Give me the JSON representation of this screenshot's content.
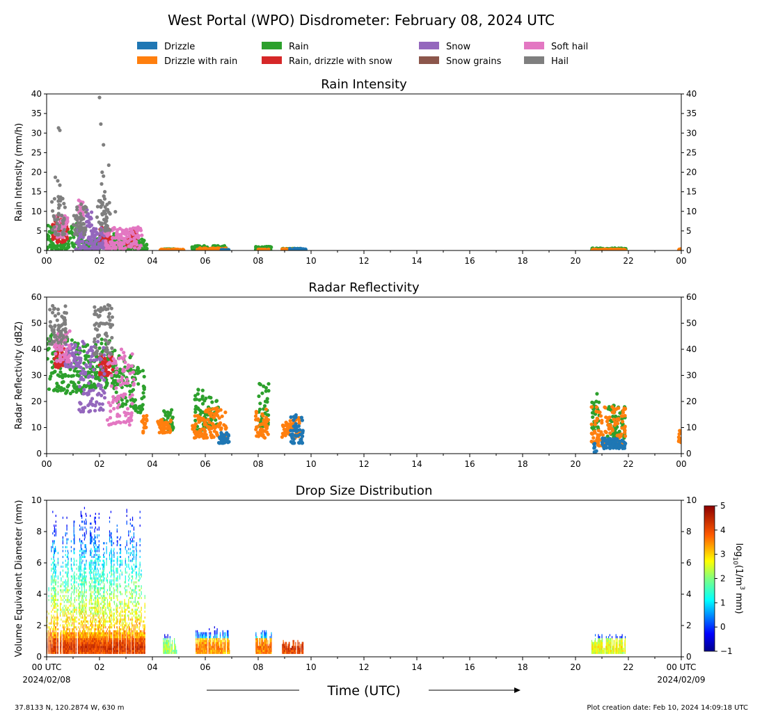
{
  "title": "West Portal (WPO) Disdrometer: February 08, 2024 UTC",
  "legend": [
    {
      "label": "Drizzle",
      "color": "#1f77b4"
    },
    {
      "label": "Drizzle with rain",
      "color": "#ff7f0e"
    },
    {
      "label": "Rain",
      "color": "#2ca02c"
    },
    {
      "label": "Rain, drizzle with snow",
      "color": "#d62728"
    },
    {
      "label": "Snow",
      "color": "#9467bd"
    },
    {
      "label": "Snow grains",
      "color": "#8c564b"
    },
    {
      "label": "Soft hail",
      "color": "#e377c2"
    },
    {
      "label": "Hail",
      "color": "#7f7f7f"
    }
  ],
  "footer": {
    "location": "37.8133 N, 120.2874 W, 630 m",
    "creation": "Plot creation date: Feb 10, 2024 14:09:18 UTC"
  },
  "chart_data": [
    {
      "type": "scatter",
      "title": "Rain Intensity",
      "ylabel": "Rain Intensity (mm/h)",
      "ylim": [
        0,
        40
      ],
      "yticks": [
        "0",
        "5",
        "10",
        "15",
        "20",
        "25",
        "30",
        "35",
        "40"
      ],
      "xlim": [
        0,
        24
      ],
      "xticks": [
        "00",
        "02",
        "04",
        "06",
        "08",
        "10",
        "12",
        "14",
        "16",
        "18",
        "20",
        "22",
        "00"
      ],
      "series": [
        {
          "name": "Rain",
          "color": "#2ca02c",
          "clusters": [
            [
              0.0,
              0.6,
              0.2,
              8.0
            ],
            [
              0.6,
              1.3,
              0.3,
              7.0
            ],
            [
              1.3,
              2.0,
              0.3,
              3.0
            ],
            [
              2.0,
              2.6,
              0.3,
              5.0
            ],
            [
              2.6,
              3.4,
              0.2,
              3.0
            ],
            [
              3.3,
              3.8,
              0.1,
              3.0
            ],
            [
              4.4,
              4.9,
              0.0,
              0.4
            ],
            [
              5.5,
              6.8,
              0.0,
              1.2
            ],
            [
              7.9,
              8.5,
              0.0,
              1.0
            ],
            [
              8.9,
              9.6,
              0.0,
              0.5
            ],
            [
              20.6,
              21.9,
              0.0,
              0.6
            ]
          ]
        },
        {
          "name": "Drizzle with rain",
          "color": "#ff7f0e",
          "clusters": [
            [
              4.3,
              5.2,
              0.0,
              0.3
            ],
            [
              5.7,
              6.8,
              0.0,
              0.6
            ],
            [
              8.0,
              8.4,
              0.0,
              0.3
            ],
            [
              8.9,
              9.7,
              0.0,
              0.4
            ],
            [
              20.6,
              21.9,
              0.0,
              0.3
            ],
            [
              23.9,
              24.0,
              0.0,
              0.4
            ]
          ]
        },
        {
          "name": "Drizzle",
          "color": "#1f77b4",
          "clusters": [
            [
              6.6,
              6.9,
              0.0,
              0.2
            ],
            [
              9.2,
              9.8,
              0.0,
              0.5
            ]
          ]
        },
        {
          "name": "Rain, drizzle with snow",
          "color": "#d62728",
          "clusters": [
            [
              0.2,
              0.8,
              2.0,
              9.0
            ],
            [
              2.0,
              2.5,
              2.0,
              6.0
            ],
            [
              3.0,
              3.4,
              1.0,
              5.0
            ]
          ]
        },
        {
          "name": "Snow",
          "color": "#9467bd",
          "clusters": [
            [
              1.1,
              2.2,
              0.3,
              6.0
            ],
            [
              1.5,
              1.7,
              6.0,
              10.5
            ]
          ]
        },
        {
          "name": "Soft hail",
          "color": "#e377c2",
          "clusters": [
            [
              0.3,
              0.8,
              3.0,
              9.0
            ],
            [
              2.2,
              3.6,
              0.3,
              6.0
            ],
            [
              1.2,
              1.4,
              8.0,
              13.0
            ]
          ]
        },
        {
          "name": "Hail",
          "color": "#7f7f7f",
          "clusters": [
            [
              0.2,
              0.7,
              4.0,
              14.0
            ],
            [
              1.0,
              1.5,
              4.0,
              12.0
            ],
            [
              1.9,
              2.4,
              5.0,
              14.0
            ]
          ]
        }
      ],
      "outliers": [
        {
          "name": "Hail",
          "points": [
            [
              0.33,
              18.7
            ],
            [
              0.45,
              31.3
            ],
            [
              0.5,
              30.7
            ],
            [
              0.42,
              17.8
            ],
            [
              0.5,
              16.7
            ],
            [
              2.0,
              39.1
            ],
            [
              2.05,
              32.3
            ],
            [
              2.15,
              27.0
            ],
            [
              2.35,
              21.8
            ],
            [
              2.1,
              20.0
            ],
            [
              2.15,
              19.0
            ],
            [
              2.08,
              17.0
            ],
            [
              2.2,
              15.0
            ],
            [
              2.6,
              9.9
            ]
          ]
        }
      ]
    },
    {
      "type": "scatter",
      "title": "Radar Reflectivity",
      "ylabel": "Radar Reflectivity (dBZ)",
      "ylim": [
        0,
        60
      ],
      "yticks": [
        "0",
        "10",
        "20",
        "30",
        "40",
        "50",
        "60"
      ],
      "xlim": [
        0,
        24
      ],
      "xticks": [
        "00",
        "02",
        "04",
        "06",
        "08",
        "10",
        "12",
        "14",
        "16",
        "18",
        "20",
        "22",
        "00"
      ],
      "series": [
        {
          "name": "Rain",
          "color": "#2ca02c",
          "clusters": [
            [
              0.0,
              0.6,
              24,
              46
            ],
            [
              0.6,
              1.4,
              23,
              44
            ],
            [
              1.4,
              2.0,
              25,
              42
            ],
            [
              2.0,
              2.6,
              25,
              44
            ],
            [
              2.6,
              3.3,
              18,
              38
            ],
            [
              3.3,
              3.7,
              15,
              34
            ],
            [
              4.4,
              4.8,
              9,
              17
            ],
            [
              5.6,
              6.0,
              8,
              25
            ],
            [
              6.0,
              6.5,
              10,
              22
            ],
            [
              8.0,
              8.4,
              10,
              27
            ],
            [
              20.6,
              20.9,
              8,
              23
            ],
            [
              21.2,
              21.9,
              6,
              19
            ]
          ]
        },
        {
          "name": "Drizzle with rain",
          "color": "#ff7f0e",
          "clusters": [
            [
              3.6,
              3.8,
              8,
              15
            ],
            [
              4.2,
              4.7,
              8,
              13
            ],
            [
              5.5,
              6.0,
              6,
              15
            ],
            [
              6.0,
              6.8,
              6,
              18
            ],
            [
              7.9,
              8.4,
              6,
              17
            ],
            [
              8.9,
              9.6,
              6,
              14
            ],
            [
              20.6,
              21.9,
              3,
              18
            ],
            [
              23.9,
              24.0,
              4,
              10
            ]
          ]
        },
        {
          "name": "Drizzle",
          "color": "#1f77b4",
          "clusters": [
            [
              6.5,
              6.9,
              4,
              8
            ],
            [
              9.2,
              9.7,
              4,
              15
            ],
            [
              20.7,
              20.8,
              0,
              4
            ],
            [
              21.0,
              21.9,
              2,
              6
            ]
          ]
        },
        {
          "name": "Rain, drizzle with snow",
          "color": "#d62728",
          "clusters": [
            [
              0.3,
              0.7,
              33,
              41
            ],
            [
              2.0,
              2.5,
              30,
              38
            ]
          ]
        },
        {
          "name": "Snow",
          "color": "#9467bd",
          "clusters": [
            [
              1.2,
              2.2,
              16,
              43
            ],
            [
              0.7,
              1.3,
              33,
              42
            ]
          ]
        },
        {
          "name": "Soft hail",
          "color": "#e377c2",
          "clusters": [
            [
              0.3,
              0.9,
              35,
              47
            ],
            [
              2.3,
              3.3,
              11,
              40
            ]
          ]
        },
        {
          "name": "Hail",
          "color": "#7f7f7f",
          "clusters": [
            [
              0.1,
              0.8,
              42,
              57
            ],
            [
              1.8,
              2.5,
              38,
              57
            ]
          ]
        }
      ],
      "outliers": []
    },
    {
      "type": "heatmap",
      "title": "Drop Size Distribution",
      "ylabel": "Volume Equivalent Diameter (mm)",
      "ylim": [
        0,
        10
      ],
      "yticks": [
        "0",
        "2",
        "4",
        "6",
        "8",
        "10"
      ],
      "xlim": [
        0,
        24
      ],
      "xticks": [
        "00 UTC",
        "02",
        "04",
        "06",
        "08",
        "10",
        "12",
        "14",
        "16",
        "18",
        "20",
        "22",
        "00 UTC"
      ],
      "xdates": [
        "2024/02/08",
        "2024/02/09"
      ],
      "xlabel": "Time (UTC)",
      "colorbar": {
        "label_base": "log",
        "label_sub": "10",
        "label_rest": "(1/m",
        "label_sup": "3",
        "label_end": " mm)",
        "min": -1,
        "max": 5,
        "ticks": [
          "−1",
          "0",
          "1",
          "2",
          "3",
          "4",
          "5"
        ]
      },
      "events": [
        {
          "start": 0.0,
          "end": 3.7,
          "dmax": 10.0,
          "peak": 4.0
        },
        {
          "start": 4.4,
          "end": 4.9,
          "dmax": 1.5,
          "peak": 2.0
        },
        {
          "start": 5.6,
          "end": 6.9,
          "dmax": 2.0,
          "peak": 3.3
        },
        {
          "start": 7.9,
          "end": 8.5,
          "dmax": 2.0,
          "peak": 3.5
        },
        {
          "start": 8.9,
          "end": 9.7,
          "dmax": 1.0,
          "peak": 4.0
        },
        {
          "start": 20.6,
          "end": 21.9,
          "dmax": 1.5,
          "peak": 2.5
        }
      ]
    }
  ]
}
